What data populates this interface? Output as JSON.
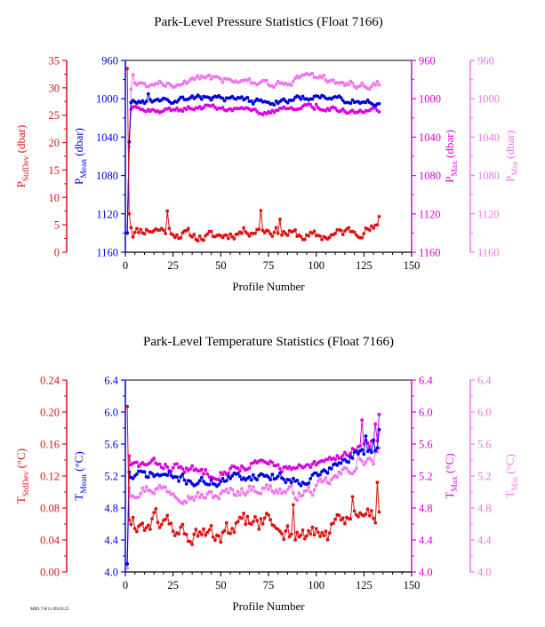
{
  "colors": {
    "stddev": "#dd1111",
    "mean": "#0000dd",
    "max": "#dd00dd",
    "min": "#ee77ee",
    "axis": "#000000"
  },
  "footer_text": "MRS 7/8/13 09:03:25",
  "chart_data": [
    {
      "type": "line",
      "title": "Park-Level Pressure Statistics (Float 7166)",
      "xlabel": "Profile Number",
      "x_ticks": [
        "0",
        "25",
        "50",
        "75",
        "100",
        "125",
        "150"
      ],
      "xlim": [
        0,
        150
      ],
      "axes": {
        "stddev": {
          "label_main": "P",
          "label_sub": "StdDev",
          "label_unit": " (dbar)",
          "ticks": [
            "0",
            "5",
            "10",
            "15",
            "20",
            "25",
            "30",
            "35"
          ],
          "range": [
            0,
            35
          ],
          "inverted": false
        },
        "mean": {
          "label_main": "P",
          "label_sub": "Mean",
          "label_unit": " (dbar)",
          "ticks": [
            "960",
            "1000",
            "1040",
            "1080",
            "1120",
            "1160"
          ],
          "range": [
            960,
            1160
          ],
          "inverted": true
        },
        "max": {
          "label_main": "P",
          "label_sub": "Max",
          "label_unit": " (dbar)",
          "ticks": [
            "960",
            "1000",
            "1040",
            "1080",
            "1120",
            "1160"
          ],
          "range": [
            960,
            1160
          ],
          "inverted": true
        },
        "min": {
          "label_main": "P",
          "label_sub": "Min",
          "label_unit": " (dbar)",
          "ticks": [
            "960",
            "1000",
            "1040",
            "1080",
            "1120",
            "1160"
          ],
          "range": [
            960,
            1160
          ],
          "inverted": true
        }
      },
      "series": [
        {
          "key": "stddev",
          "axis": "stddev",
          "base": 3.5,
          "spread": 0.8,
          "seed": 11,
          "trend": 0,
          "overrides": [
            [
              1,
              33.5
            ],
            [
              2,
              7
            ],
            [
              3,
              4.5
            ],
            [
              22,
              7.5
            ],
            [
              71,
              7.6
            ],
            [
              81,
              6
            ],
            [
              133,
              6.5
            ]
          ]
        },
        {
          "key": "mean",
          "axis": "mean",
          "base": 1001,
          "spread": 2.6,
          "seed": 23,
          "trend": 0,
          "overrides": [
            [
              1,
              1140
            ],
            [
              2,
              1045
            ],
            [
              3,
              1004
            ],
            [
              12,
              995
            ],
            [
              100,
              997
            ]
          ]
        },
        {
          "key": "max",
          "axis": "max",
          "base": 1011,
          "spread": 2.3,
          "seed": 37,
          "trend": 0,
          "overrides": [
            [
              1,
              1140
            ],
            [
              2,
              1045
            ],
            [
              3,
              1011
            ],
            [
              100,
              1006
            ]
          ]
        },
        {
          "key": "min",
          "axis": "min",
          "base": 982,
          "spread": 3.2,
          "seed": 51,
          "trend": 0,
          "overrides": [
            [
              1,
              1140
            ],
            [
              2,
              1050
            ],
            [
              3,
              990
            ],
            [
              4,
              975
            ],
            [
              100,
              978
            ]
          ]
        }
      ]
    },
    {
      "type": "line",
      "title": "Park-Level Temperature Statistics (Float 7166)",
      "xlabel": "Profile Number",
      "x_ticks": [
        "0",
        "25",
        "50",
        "75",
        "100",
        "125",
        "150"
      ],
      "xlim": [
        0,
        150
      ],
      "axes": {
        "stddev": {
          "label_main": "T",
          "label_sub": "StdDev",
          "label_unit": " (°C)",
          "ticks": [
            "0.00",
            "0.04",
            "0.08",
            "0.12",
            "0.16",
            "0.20",
            "0.24"
          ],
          "range": [
            0,
            0.24
          ],
          "inverted": false
        },
        "mean": {
          "label_main": "T",
          "label_sub": "Mean",
          "label_unit": " (°C)",
          "ticks": [
            "4.0",
            "4.4",
            "4.8",
            "5.2",
            "5.6",
            "6.0",
            "6.4"
          ],
          "range": [
            4.0,
            6.4
          ],
          "inverted": false
        },
        "max": {
          "label_main": "T",
          "label_sub": "Max",
          "label_unit": " (°C)",
          "ticks": [
            "4.0",
            "4.4",
            "4.8",
            "5.2",
            "5.6",
            "6.0",
            "6.4"
          ],
          "range": [
            4.0,
            6.4
          ],
          "inverted": false
        },
        "min": {
          "label_main": "T",
          "label_sub": "Min",
          "label_unit": " (°C)",
          "ticks": [
            "4.0",
            "4.4",
            "4.8",
            "5.2",
            "5.6",
            "6.0",
            "6.4"
          ],
          "range": [
            4.0,
            6.4
          ],
          "inverted": false
        }
      },
      "series": [
        {
          "key": "stddev",
          "axis": "stddev",
          "base": 0.052,
          "spread": 0.011,
          "seed": 61,
          "trend": 0.012,
          "overrides": [
            [
              1,
              0.207
            ],
            [
              2,
              0.065
            ],
            [
              88,
              0.084
            ],
            [
              119,
              0.094
            ],
            [
              132,
              0.112
            ],
            [
              133,
              0.075
            ]
          ]
        },
        {
          "key": "mean",
          "axis": "mean",
          "base": 5.17,
          "spread": 0.05,
          "seed": 71,
          "trend": 0.35,
          "overrides": [
            [
              1,
              4.1
            ],
            [
              2,
              5.25
            ],
            [
              120,
              5.5
            ],
            [
              126,
              5.7
            ],
            [
              130,
              5.65
            ],
            [
              133,
              5.78
            ]
          ]
        },
        {
          "key": "max",
          "axis": "max",
          "base": 5.3,
          "spread": 0.05,
          "seed": 83,
          "trend": 0.3,
          "overrides": [
            [
              1,
              4.1
            ],
            [
              2,
              5.45
            ],
            [
              124,
              5.9
            ],
            [
              131,
              5.85
            ],
            [
              133,
              5.97
            ]
          ]
        },
        {
          "key": "min",
          "axis": "min",
          "base": 5.0,
          "spread": 0.06,
          "seed": 97,
          "trend": 0.4,
          "overrides": [
            [
              1,
              4.05
            ],
            [
              2,
              5.05
            ],
            [
              122,
              5.5
            ],
            [
              130,
              5.35
            ],
            [
              133,
              5.55
            ]
          ]
        }
      ]
    }
  ]
}
